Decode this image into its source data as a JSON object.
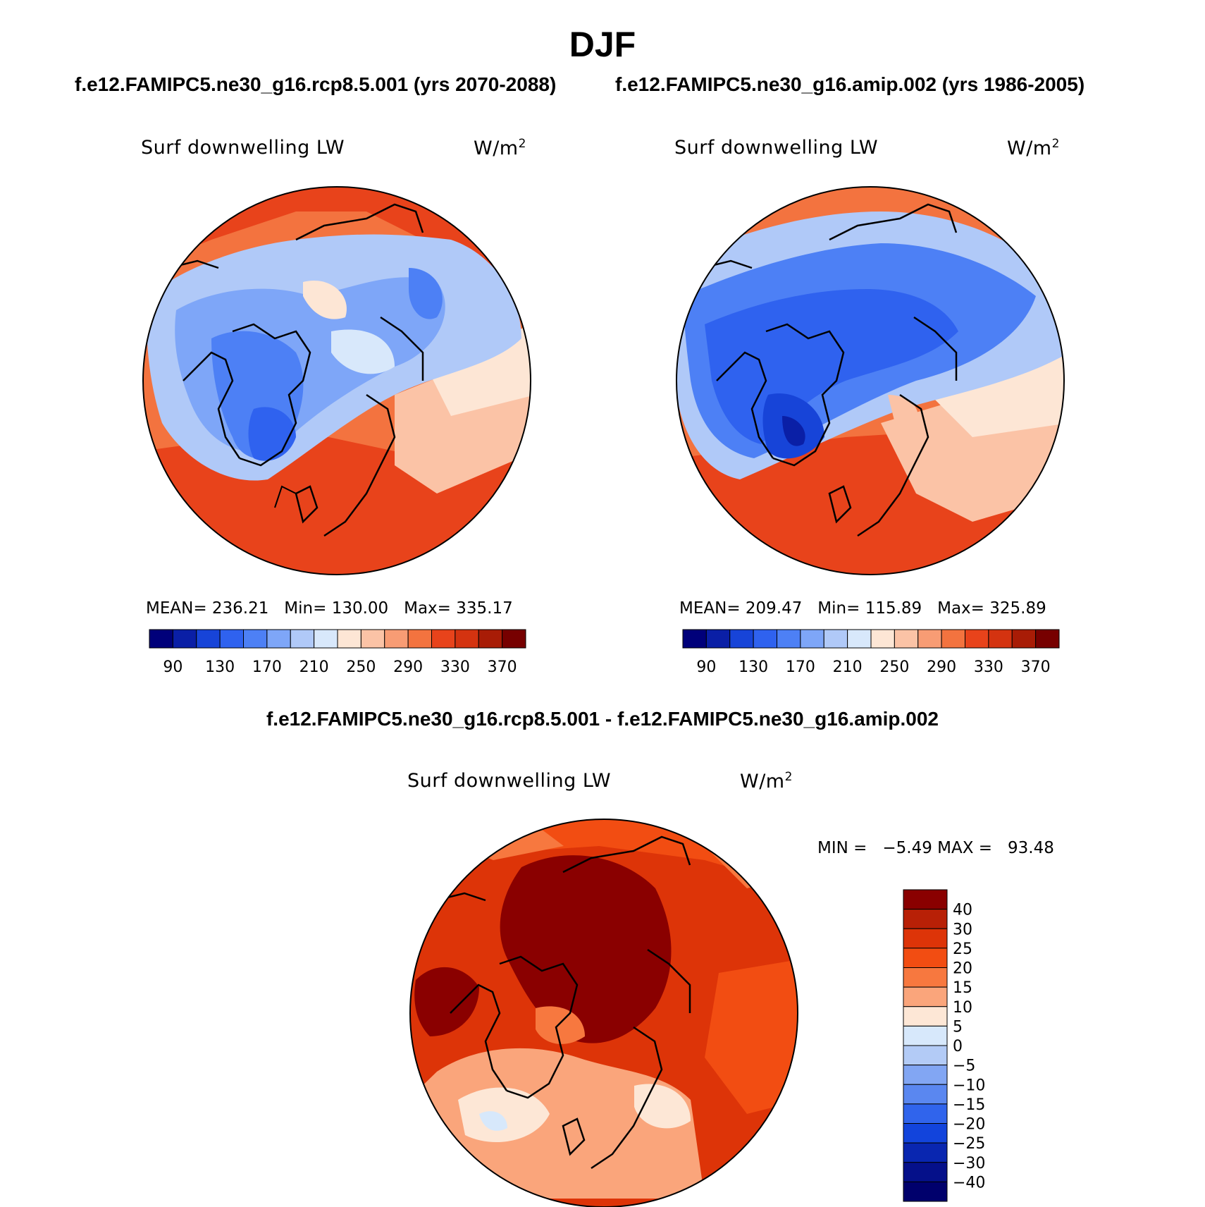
{
  "figure": {
    "title": "DJF",
    "left_case_title": "f.e12.FAMIPC5.ne30_g16.rcp8.5.001 (yrs 2070-2088)",
    "right_case_title": "f.e12.FAMIPC5.ne30_g16.amip.002 (yrs 1986-2005)",
    "difference_title": "f.e12.FAMIPC5.ne30_g16.rcp8.5.001 - f.e12.FAMIPC5.ne30_g16.amip.002"
  },
  "panels": [
    {
      "variable": "Surf downwelling LW",
      "units_base": "W/m",
      "units_exp": "2",
      "stats": "MEAN= 236.21   Min= 130.00   Max= 335.17",
      "colorbar_ticks": [
        "90",
        "130",
        "170",
        "210",
        "250",
        "290",
        "330",
        "370"
      ]
    },
    {
      "variable": "Surf downwelling LW",
      "units_base": "W/m",
      "units_exp": "2",
      "stats": "MEAN= 209.47   Min= 115.89   Max= 325.89",
      "colorbar_ticks": [
        "90",
        "130",
        "170",
        "210",
        "250",
        "290",
        "330",
        "370"
      ]
    }
  ],
  "difference_panel": {
    "variable": "Surf downwelling LW",
    "units_base": "W/m",
    "units_exp": "2",
    "stats": "MIN =   −5.49 MAX =   93.48",
    "colorbar_ticks": [
      "40",
      "30",
      "25",
      "20",
      "15",
      "10",
      "5",
      "0",
      "−5",
      "−10",
      "−15",
      "−20",
      "−25",
      "−30",
      "−40"
    ]
  },
  "colors": {
    "absolute_scale": [
      "#00007a",
      "#0a1fa6",
      "#1744d8",
      "#2f62ef",
      "#4d80f5",
      "#7ea6f8",
      "#b0c9f8",
      "#d8e8fb",
      "#fde6d5",
      "#fbc3a6",
      "#f89c74",
      "#f3733f",
      "#e8431b",
      "#d43310",
      "#a81c06",
      "#770000"
    ],
    "difference_scale": [
      "#8a0000",
      "#b82006",
      "#dd3408",
      "#f24d12",
      "#f7783f",
      "#faa57b",
      "#fde7d6",
      "#d7e8fb",
      "#b3cbf6",
      "#82a6f3",
      "#5a87f0",
      "#3064ec",
      "#1244dc",
      "#0926b0",
      "#05108a",
      "#00006c"
    ],
    "coastline": "#000000"
  }
}
